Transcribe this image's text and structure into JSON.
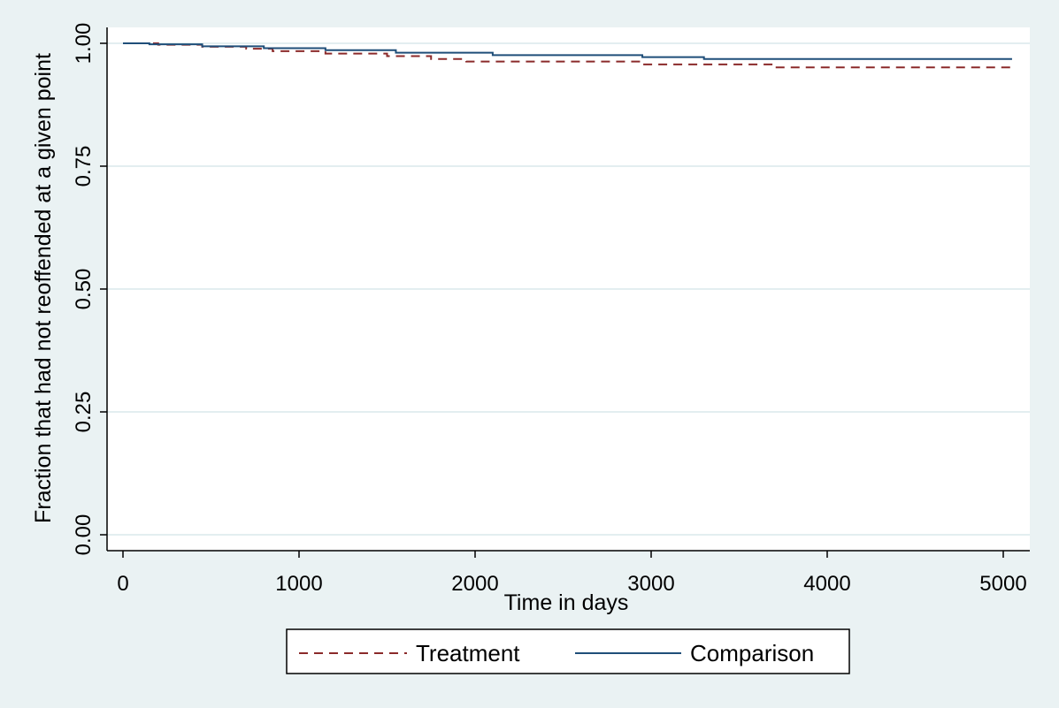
{
  "chart_data": {
    "type": "line",
    "title": "",
    "xlabel": "Time in days",
    "ylabel": "Fraction that had not reoffended at a given point",
    "xlim": [
      0,
      5100
    ],
    "ylim": [
      0,
      1.0
    ],
    "x_ticks": [
      0,
      1000,
      2000,
      3000,
      4000,
      5000
    ],
    "x_tick_labels": [
      "0",
      "1000",
      "2000",
      "3000",
      "4000",
      "5000"
    ],
    "y_ticks": [
      0,
      0.25,
      0.5,
      0.75,
      1.0
    ],
    "y_tick_labels": [
      "0.00",
      "0.25",
      "0.50",
      "0.75",
      "1.00"
    ],
    "grid": true,
    "legend_position": "bottom",
    "series": [
      {
        "name": "Treatment",
        "style": "dashed",
        "color": "#8b2a2a",
        "x": [
          0,
          50,
          200,
          450,
          700,
          850,
          1150,
          1500,
          1750,
          1950,
          2950,
          3700,
          5050
        ],
        "y": [
          1.0,
          1.0,
          0.997,
          0.993,
          0.989,
          0.984,
          0.979,
          0.974,
          0.968,
          0.963,
          0.957,
          0.951,
          0.951
        ]
      },
      {
        "name": "Comparison",
        "style": "solid",
        "color": "#1f4e79",
        "x": [
          0,
          50,
          150,
          450,
          800,
          1150,
          1550,
          2100,
          2950,
          3300,
          5050
        ],
        "y": [
          1.0,
          1.0,
          0.998,
          0.994,
          0.99,
          0.986,
          0.981,
          0.976,
          0.972,
          0.968,
          0.968
        ]
      }
    ]
  },
  "legend": {
    "treatment_label": "Treatment",
    "comparison_label": "Comparison"
  }
}
